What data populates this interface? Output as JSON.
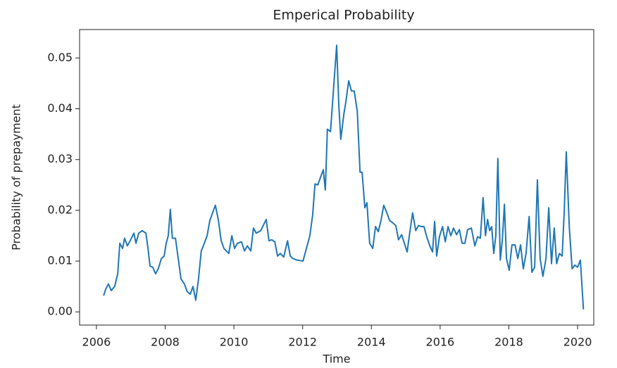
{
  "chart_data": {
    "type": "line",
    "title": "Emperical Probability",
    "xlabel": "Time",
    "ylabel": "Probability of prepayment",
    "x": [
      2006.21,
      2006.27,
      2006.35,
      2006.43,
      2006.53,
      2006.62,
      2006.68,
      2006.76,
      2006.82,
      2006.9,
      2006.98,
      2007.09,
      2007.15,
      2007.23,
      2007.33,
      2007.44,
      2007.5,
      2007.56,
      2007.64,
      2007.72,
      2007.8,
      2007.89,
      2007.97,
      2008.03,
      2008.09,
      2008.15,
      2008.21,
      2008.3,
      2008.38,
      2008.46,
      2008.56,
      2008.64,
      2008.73,
      2008.81,
      2008.89,
      2008.97,
      2009.05,
      2009.14,
      2009.22,
      2009.3,
      2009.46,
      2009.55,
      2009.63,
      2009.71,
      2009.85,
      2009.94,
      2010.02,
      2010.1,
      2010.22,
      2010.31,
      2010.39,
      2010.49,
      2010.57,
      2010.65,
      2010.78,
      2010.94,
      2011.02,
      2011.1,
      2011.19,
      2011.27,
      2011.35,
      2011.45,
      2011.56,
      2011.64,
      2011.72,
      2011.84,
      2012.01,
      2012.11,
      2012.21,
      2012.29,
      2012.36,
      2012.44,
      2012.52,
      2012.6,
      2012.66,
      2012.72,
      2012.81,
      2012.91,
      2012.99,
      2013.05,
      2013.11,
      2013.2,
      2013.26,
      2013.34,
      2013.42,
      2013.5,
      2013.59,
      2013.67,
      2013.73,
      2013.81,
      2013.87,
      2013.95,
      2014.04,
      2014.12,
      2014.2,
      2014.28,
      2014.36,
      2014.45,
      2014.53,
      2014.63,
      2014.71,
      2014.79,
      2014.88,
      2014.96,
      2015.04,
      2015.12,
      2015.2,
      2015.29,
      2015.37,
      2015.45,
      2015.53,
      2015.61,
      2015.7,
      2015.78,
      2015.84,
      2015.9,
      2015.98,
      2016.07,
      2016.15,
      2016.23,
      2016.31,
      2016.39,
      2016.48,
      2016.56,
      2016.64,
      2016.72,
      2016.8,
      2016.91,
      2017.01,
      2017.09,
      2017.17,
      2017.25,
      2017.32,
      2017.38,
      2017.44,
      2017.5,
      2017.56,
      2017.62,
      2017.68,
      2017.75,
      2017.81,
      2017.87,
      2017.93,
      2018.01,
      2018.09,
      2018.18,
      2018.26,
      2018.34,
      2018.42,
      2018.5,
      2018.59,
      2018.67,
      2018.75,
      2018.83,
      2018.91,
      2018.99,
      2019.08,
      2019.16,
      2019.24,
      2019.32,
      2019.39,
      2019.47,
      2019.55,
      2019.61,
      2019.67,
      2019.76,
      2019.84,
      2019.92,
      2020.0,
      2020.08,
      2020.17
    ],
    "series": [
      {
        "color": "#1f77b4",
        "values": [
          0.0032,
          0.0045,
          0.0055,
          0.0042,
          0.005,
          0.0075,
          0.0135,
          0.0125,
          0.0145,
          0.013,
          0.014,
          0.0155,
          0.0135,
          0.0155,
          0.016,
          0.0155,
          0.0125,
          0.009,
          0.0088,
          0.0075,
          0.0085,
          0.0105,
          0.011,
          0.0135,
          0.015,
          0.0202,
          0.0145,
          0.0145,
          0.0105,
          0.0065,
          0.0055,
          0.004,
          0.0035,
          0.005,
          0.0023,
          0.0065,
          0.012,
          0.0135,
          0.015,
          0.018,
          0.021,
          0.018,
          0.014,
          0.0125,
          0.0115,
          0.015,
          0.0125,
          0.0135,
          0.0138,
          0.012,
          0.013,
          0.012,
          0.0165,
          0.0155,
          0.016,
          0.0182,
          0.014,
          0.0142,
          0.0138,
          0.011,
          0.0115,
          0.0108,
          0.014,
          0.011,
          0.0105,
          0.0102,
          0.01,
          0.0125,
          0.015,
          0.019,
          0.0252,
          0.025,
          0.0265,
          0.028,
          0.024,
          0.036,
          0.0355,
          0.045,
          0.0525,
          0.041,
          0.034,
          0.039,
          0.0415,
          0.0455,
          0.0435,
          0.0435,
          0.0395,
          0.0275,
          0.0275,
          0.0205,
          0.0215,
          0.0135,
          0.0125,
          0.0168,
          0.0158,
          0.018,
          0.021,
          0.0195,
          0.018,
          0.0175,
          0.017,
          0.0142,
          0.0152,
          0.0135,
          0.0118,
          0.0158,
          0.0195,
          0.016,
          0.017,
          0.0168,
          0.0168,
          0.0148,
          0.013,
          0.0118,
          0.0178,
          0.011,
          0.0148,
          0.0168,
          0.0138,
          0.0168,
          0.015,
          0.0165,
          0.0152,
          0.0162,
          0.0135,
          0.0135,
          0.0162,
          0.0165,
          0.013,
          0.0148,
          0.0145,
          0.0225,
          0.015,
          0.0182,
          0.016,
          0.0168,
          0.0115,
          0.015,
          0.0302,
          0.0102,
          0.0142,
          0.0212,
          0.0105,
          0.0082,
          0.0132,
          0.0132,
          0.0105,
          0.0132,
          0.0085,
          0.0115,
          0.0188,
          0.0078,
          0.0088,
          0.026,
          0.0105,
          0.007,
          0.0105,
          0.0205,
          0.0095,
          0.0165,
          0.0095,
          0.0115,
          0.011,
          0.0195,
          0.0315,
          0.0165,
          0.0085,
          0.0092,
          0.0088,
          0.0102,
          0.0005
        ]
      }
    ],
    "xlim": [
      2005.51,
      2020.47
    ],
    "xticks": [
      2006,
      2008,
      2010,
      2012,
      2014,
      2016,
      2018,
      2020
    ],
    "ylim": [
      -0.0026,
      0.0556
    ],
    "yticks": [
      {
        "value": 0,
        "label": "0.00"
      },
      0.01,
      0.02,
      0.03,
      0.04,
      0.05
    ]
  }
}
